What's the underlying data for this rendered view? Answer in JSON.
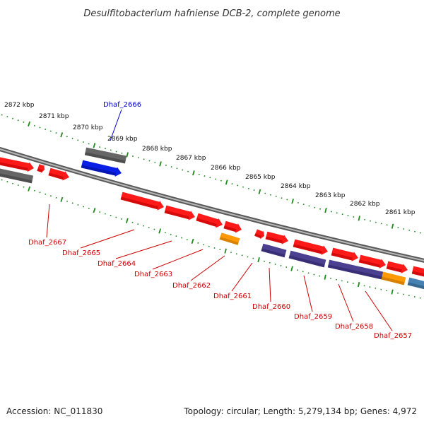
{
  "title": "Desulfitobacterium hafniense DCB-2, complete genome",
  "footer": {
    "accession": "Accession: NC_011830",
    "summary": "Topology: circular; Length: 5,279,134 bp; Genes: 4,972"
  },
  "colors": {
    "red": "#ff1a1a",
    "red_dark": "#b30000",
    "gray": "#666666",
    "gray_dark": "#3a3a3a",
    "blue": "#0a1fe6",
    "blue_dark": "#00108a",
    "purple": "#4b3f8f",
    "purple_dark": "#2a2160",
    "orange": "#ff9a00",
    "orange_dark": "#b86d00",
    "steel": "#4682b4",
    "steel_dark": "#2b5577",
    "tick_green": "#1f8a1f",
    "label_red": "#cc0000",
    "label_blue": "#0000cc",
    "backbone": "#8a8a8a"
  },
  "kbp_labels": [
    {
      "text": "2872 kbp",
      "pos": 2872
    },
    {
      "text": "2871 kbp",
      "pos": 2871
    },
    {
      "text": "2870 kbp",
      "pos": 2870
    },
    {
      "text": "2869 kbp",
      "pos": 2869
    },
    {
      "text": "2868 kbp",
      "pos": 2868
    },
    {
      "text": "2867 kbp",
      "pos": 2867
    },
    {
      "text": "2866 kbp",
      "pos": 2866
    },
    {
      "text": "2865 kbp",
      "pos": 2865
    },
    {
      "text": "2864 kbp",
      "pos": 2864
    },
    {
      "text": "2863 kbp",
      "pos": 2863
    },
    {
      "text": "2862 kbp",
      "pos": 2862
    },
    {
      "text": "2861 kbp",
      "pos": 2861
    }
  ],
  "gene_labels": [
    {
      "id": "dhaf-2666",
      "text": "Dhaf_2666",
      "color": "blue"
    },
    {
      "id": "dhaf-2667",
      "text": "Dhaf_2667",
      "color": "red"
    },
    {
      "id": "dhaf-2665",
      "text": "Dhaf_2665",
      "color": "red"
    },
    {
      "id": "dhaf-2664",
      "text": "Dhaf_2664",
      "color": "red"
    },
    {
      "id": "dhaf-2663",
      "text": "Dhaf_2663",
      "color": "red"
    },
    {
      "id": "dhaf-2662",
      "text": "Dhaf_2662",
      "color": "red"
    },
    {
      "id": "dhaf-2661",
      "text": "Dhaf_2661",
      "color": "red"
    },
    {
      "id": "dhaf-2660",
      "text": "Dhaf_2660",
      "color": "red"
    },
    {
      "id": "dhaf-2659",
      "text": "Dhaf_2659",
      "color": "red"
    },
    {
      "id": "dhaf-2658",
      "text": "Dhaf_2658",
      "color": "red"
    },
    {
      "id": "dhaf-2657",
      "text": "Dhaf_2657",
      "color": "red"
    }
  ]
}
